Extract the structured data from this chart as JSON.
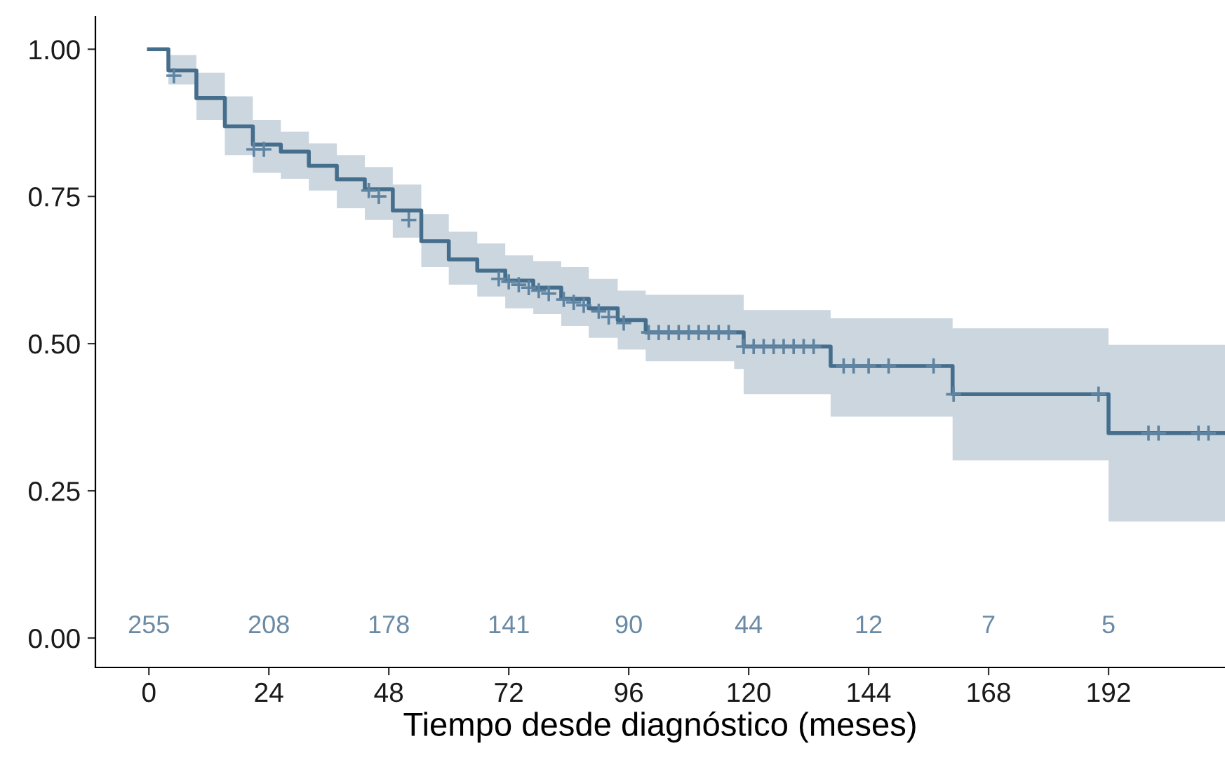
{
  "chart_data": {
    "type": "step",
    "xlabel": "Tiempo desde diagnóstico (meses)",
    "xlim": [
      -10.7,
      215.3
    ],
    "ylim": [
      -0.05,
      1.055
    ],
    "xticks": [
      0,
      24,
      48,
      72,
      96,
      120,
      144,
      168,
      192
    ],
    "yticks": [
      {
        "value": 0,
        "label": "0.00"
      },
      {
        "value": 0.25,
        "label": "0.25"
      },
      {
        "value": 0.5,
        "label": "0.50"
      },
      {
        "value": 0.75,
        "label": "0.75"
      },
      {
        "value": 1,
        "label": "1.00"
      }
    ],
    "grid": false,
    "legend": false,
    "series": [
      {
        "color": "#456d8c",
        "line_style": "solid",
        "marker": "none",
        "x": [
          0,
          3.9,
          9.5,
          15.2,
          20.8,
          26.4,
          32,
          37.6,
          43.2,
          48.8,
          54.5,
          60,
          65.7,
          71.3,
          76.9,
          82.5,
          88,
          93.8,
          99.4,
          117.1,
          119,
          136.4,
          160.8,
          192,
          215.3
        ],
        "values": [
          1.0,
          0.964,
          0.917,
          0.869,
          0.838,
          0.826,
          0.802,
          0.779,
          0.762,
          0.726,
          0.674,
          0.643,
          0.624,
          0.607,
          0.595,
          0.576,
          0.56,
          0.54,
          0.519,
          0.519,
          0.495,
          0.462,
          0.414,
          0.348,
          0.348
        ],
        "lower": [
          1.0,
          0.94,
          0.88,
          0.82,
          0.79,
          0.78,
          0.76,
          0.73,
          0.71,
          0.68,
          0.63,
          0.6,
          0.58,
          0.56,
          0.55,
          0.53,
          0.51,
          0.49,
          0.47,
          0.457,
          0.414,
          0.376,
          0.302,
          0.198,
          0.198
        ],
        "upper": [
          1.0,
          0.99,
          0.96,
          0.92,
          0.88,
          0.86,
          0.84,
          0.82,
          0.8,
          0.77,
          0.72,
          0.69,
          0.67,
          0.65,
          0.64,
          0.63,
          0.61,
          0.59,
          0.583,
          0.583,
          0.557,
          0.543,
          0.526,
          0.498,
          0.498
        ]
      },
      {
        "type": "scatter",
        "color": "#5f84a2",
        "marker": "cross",
        "x": [
          5,
          21,
          23,
          44,
          46,
          52,
          70,
          72,
          74,
          76,
          78,
          80,
          83,
          85,
          87,
          90,
          92,
          95,
          100,
          102,
          104,
          106,
          108,
          110,
          112,
          114,
          116,
          119,
          121,
          123,
          125,
          127,
          129,
          131,
          133,
          139,
          141,
          144,
          148,
          157,
          161,
          190,
          200,
          202,
          210,
          212
        ],
        "values": [
          0.955,
          0.83,
          0.83,
          0.76,
          0.75,
          0.71,
          0.61,
          0.605,
          0.6,
          0.595,
          0.59,
          0.585,
          0.575,
          0.57,
          0.565,
          0.555,
          0.545,
          0.535,
          0.519,
          0.519,
          0.519,
          0.519,
          0.519,
          0.519,
          0.519,
          0.519,
          0.519,
          0.495,
          0.495,
          0.495,
          0.495,
          0.495,
          0.495,
          0.495,
          0.495,
          0.462,
          0.462,
          0.462,
          0.462,
          0.462,
          0.414,
          0.414,
          0.348,
          0.348,
          0.348,
          0.348
        ]
      }
    ],
    "annotations": [
      "255",
      "208",
      "178",
      "141",
      "90",
      "44",
      "12",
      "7",
      "5"
    ]
  }
}
